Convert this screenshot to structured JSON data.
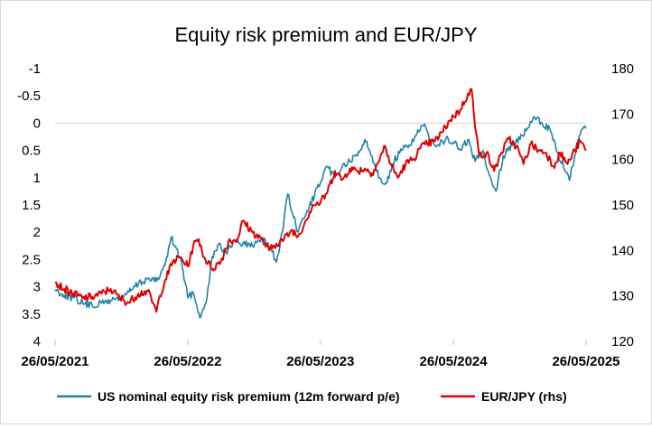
{
  "chart_data": {
    "type": "line",
    "title": "Equity risk premium and EUR/JPY",
    "x_ticks": [
      "26/05/2021",
      "26/05/2022",
      "26/05/2023",
      "26/05/2024",
      "26/05/2025"
    ],
    "y_left": {
      "range": [
        4,
        -1
      ],
      "inverted": true,
      "ticks": [
        "-1",
        "-0.5",
        "0",
        "0.5",
        "1",
        "1.5",
        "2",
        "2.5",
        "3",
        "3.5",
        "4"
      ]
    },
    "y_right": {
      "range": [
        120,
        180
      ],
      "ticks": [
        "180",
        "170",
        "160",
        "150",
        "140",
        "130",
        "120"
      ]
    },
    "grid": false,
    "legend_position": "bottom",
    "series": [
      {
        "name": "US nominal equity risk premium (12m forward p/e)",
        "axis": "left",
        "color": "#1f83a6",
        "points": [
          [
            "2021-05-26",
            3.05
          ],
          [
            "2021-06-20",
            3.15
          ],
          [
            "2021-07-15",
            3.2
          ],
          [
            "2021-08-10",
            3.3
          ],
          [
            "2021-09-05",
            3.35
          ],
          [
            "2021-10-01",
            3.3
          ],
          [
            "2021-10-26",
            3.25
          ],
          [
            "2021-11-20",
            3.2
          ],
          [
            "2021-12-15",
            3.1
          ],
          [
            "2022-01-10",
            2.95
          ],
          [
            "2022-02-05",
            2.85
          ],
          [
            "2022-03-01",
            2.9
          ],
          [
            "2022-03-25",
            2.6
          ],
          [
            "2022-04-10",
            2.1
          ],
          [
            "2022-04-25",
            2.3
          ],
          [
            "2022-05-10",
            2.6
          ],
          [
            "2022-05-26",
            3.2
          ],
          [
            "2022-06-10",
            3.1
          ],
          [
            "2022-06-20",
            3.35
          ],
          [
            "2022-07-01",
            3.55
          ],
          [
            "2022-07-15",
            3.3
          ],
          [
            "2022-08-01",
            2.45
          ],
          [
            "2022-08-20",
            2.2
          ],
          [
            "2022-09-10",
            2.4
          ],
          [
            "2022-10-01",
            2.15
          ],
          [
            "2022-10-25",
            2.2
          ],
          [
            "2022-11-20",
            2.25
          ],
          [
            "2022-12-15",
            2.1
          ],
          [
            "2023-01-10",
            2.3
          ],
          [
            "2023-01-25",
            2.55
          ],
          [
            "2023-02-10",
            2.0
          ],
          [
            "2023-02-25",
            1.3
          ],
          [
            "2023-03-10",
            1.65
          ],
          [
            "2023-03-25",
            2.0
          ],
          [
            "2023-04-10",
            1.75
          ],
          [
            "2023-04-25",
            1.55
          ],
          [
            "2023-05-10",
            1.3
          ],
          [
            "2023-05-26",
            1.1
          ],
          [
            "2023-06-15",
            0.8
          ],
          [
            "2023-07-05",
            1.0
          ],
          [
            "2023-07-25",
            0.8
          ],
          [
            "2023-08-15",
            0.7
          ],
          [
            "2023-09-05",
            0.6
          ],
          [
            "2023-09-25",
            0.3
          ],
          [
            "2023-10-15",
            0.6
          ],
          [
            "2023-11-05",
            1.0
          ],
          [
            "2023-11-25",
            1.1
          ],
          [
            "2023-12-15",
            0.7
          ],
          [
            "2024-01-05",
            0.5
          ],
          [
            "2024-01-25",
            0.4
          ],
          [
            "2024-02-15",
            0.2
          ],
          [
            "2024-03-05",
            0.05
          ],
          [
            "2024-03-25",
            0.3
          ],
          [
            "2024-04-15",
            0.4
          ],
          [
            "2024-05-05",
            0.3
          ],
          [
            "2024-05-26",
            0.35
          ],
          [
            "2024-06-15",
            0.5
          ],
          [
            "2024-07-05",
            0.3
          ],
          [
            "2024-07-25",
            0.7
          ],
          [
            "2024-08-15",
            0.5
          ],
          [
            "2024-09-05",
            1.0
          ],
          [
            "2024-09-20",
            1.25
          ],
          [
            "2024-10-10",
            0.6
          ],
          [
            "2024-11-01",
            0.4
          ],
          [
            "2024-11-25",
            0.3
          ],
          [
            "2024-12-15",
            0.1
          ],
          [
            "2025-01-05",
            -0.1
          ],
          [
            "2025-01-25",
            0.0
          ],
          [
            "2025-02-15",
            0.1
          ],
          [
            "2025-03-05",
            0.5
          ],
          [
            "2025-03-25",
            0.8
          ],
          [
            "2025-04-10",
            1.05
          ],
          [
            "2025-04-25",
            0.6
          ],
          [
            "2025-05-10",
            0.2
          ],
          [
            "2025-05-26",
            0.1
          ]
        ]
      },
      {
        "name": "EUR/JPY (rhs)",
        "axis": "right",
        "color": "#e00000",
        "points": [
          [
            "2021-05-26",
            133.0
          ],
          [
            "2021-06-20",
            131.5
          ],
          [
            "2021-07-15",
            130.5
          ],
          [
            "2021-08-10",
            129.5
          ],
          [
            "2021-09-05",
            129.8
          ],
          [
            "2021-10-01",
            130.5
          ],
          [
            "2021-10-26",
            131.5
          ],
          [
            "2021-11-20",
            129.5
          ],
          [
            "2021-12-15",
            128.5
          ],
          [
            "2022-01-10",
            130.5
          ],
          [
            "2022-02-05",
            131.0
          ],
          [
            "2022-03-01",
            126.5
          ],
          [
            "2022-03-10",
            130.0
          ],
          [
            "2022-03-25",
            133.5
          ],
          [
            "2022-04-15",
            137.5
          ],
          [
            "2022-05-05",
            138.5
          ],
          [
            "2022-05-26",
            136.5
          ],
          [
            "2022-06-10",
            141.0
          ],
          [
            "2022-06-25",
            142.5
          ],
          [
            "2022-07-10",
            138.5
          ],
          [
            "2022-08-01",
            136.0
          ],
          [
            "2022-08-25",
            137.5
          ],
          [
            "2022-09-15",
            142.0
          ],
          [
            "2022-10-10",
            142.5
          ],
          [
            "2022-10-25",
            146.5
          ],
          [
            "2022-11-20",
            144.0
          ],
          [
            "2022-12-15",
            142.5
          ],
          [
            "2023-01-05",
            140.0
          ],
          [
            "2023-01-25",
            141.5
          ],
          [
            "2023-02-15",
            142.5
          ],
          [
            "2023-03-10",
            144.5
          ],
          [
            "2023-03-25",
            143.0
          ],
          [
            "2023-04-15",
            146.5
          ],
          [
            "2023-05-05",
            150.0
          ],
          [
            "2023-05-26",
            150.5
          ],
          [
            "2023-06-15",
            153.0
          ],
          [
            "2023-07-05",
            157.5
          ],
          [
            "2023-07-25",
            155.5
          ],
          [
            "2023-08-15",
            158.0
          ],
          [
            "2023-09-05",
            157.5
          ],
          [
            "2023-09-25",
            158.0
          ],
          [
            "2023-10-15",
            157.0
          ],
          [
            "2023-11-05",
            160.0
          ],
          [
            "2023-11-20",
            163.0
          ],
          [
            "2023-12-05",
            159.0
          ],
          [
            "2023-12-25",
            156.0
          ],
          [
            "2024-01-15",
            159.0
          ],
          [
            "2024-02-05",
            160.0
          ],
          [
            "2024-02-25",
            162.5
          ],
          [
            "2024-03-15",
            163.5
          ],
          [
            "2024-04-05",
            164.0
          ],
          [
            "2024-04-25",
            166.0
          ],
          [
            "2024-05-15",
            168.5
          ],
          [
            "2024-05-26",
            169.5
          ],
          [
            "2024-06-15",
            171.0
          ],
          [
            "2024-07-05",
            174.5
          ],
          [
            "2024-07-15",
            175.5
          ],
          [
            "2024-07-25",
            167.0
          ],
          [
            "2024-08-05",
            161.0
          ],
          [
            "2024-08-25",
            161.5
          ],
          [
            "2024-09-15",
            157.5
          ],
          [
            "2024-10-05",
            161.5
          ],
          [
            "2024-10-25",
            164.5
          ],
          [
            "2024-11-15",
            163.0
          ],
          [
            "2024-12-05",
            159.0
          ],
          [
            "2024-12-25",
            163.5
          ],
          [
            "2025-01-15",
            162.0
          ],
          [
            "2025-02-05",
            161.5
          ],
          [
            "2025-02-25",
            158.5
          ],
          [
            "2025-03-15",
            161.5
          ],
          [
            "2025-04-05",
            159.0
          ],
          [
            "2025-04-25",
            162.0
          ],
          [
            "2025-05-10",
            164.0
          ],
          [
            "2025-05-26",
            162.0
          ]
        ]
      }
    ]
  }
}
